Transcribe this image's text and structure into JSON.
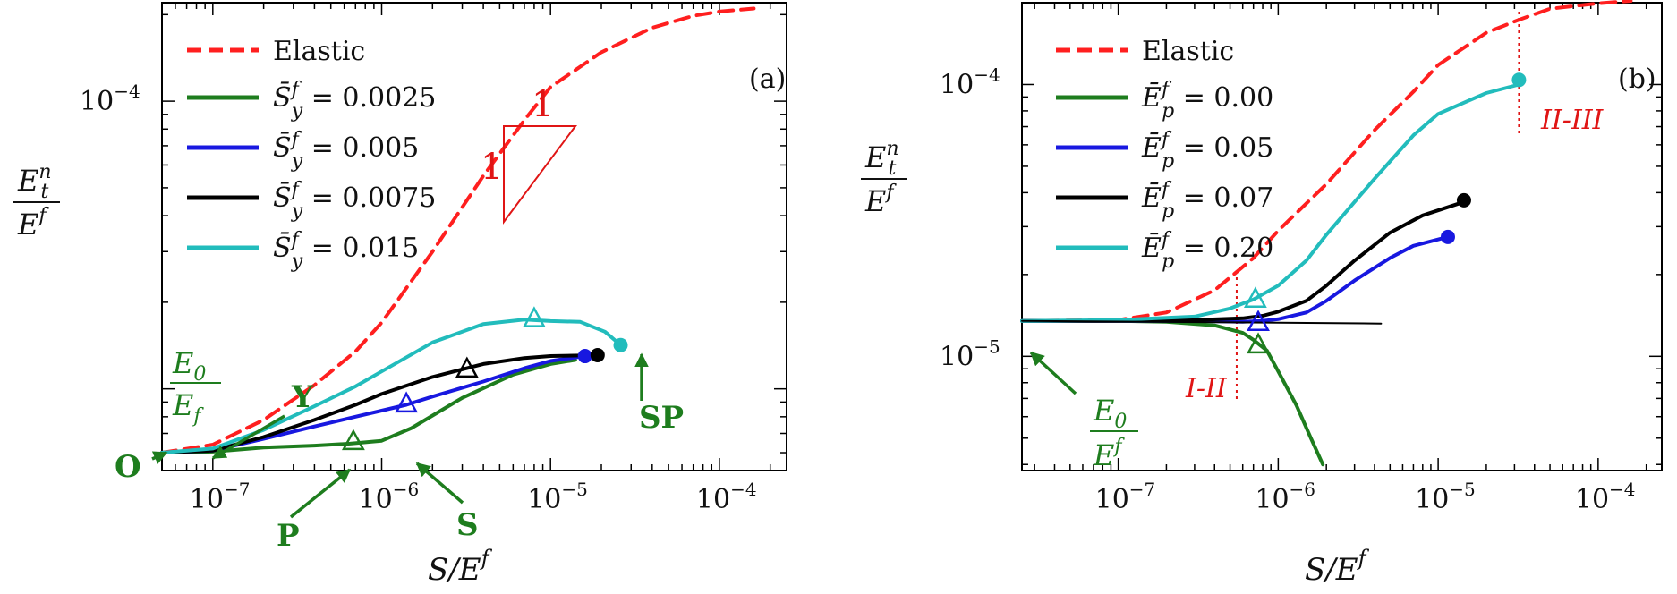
{
  "colors": {
    "elastic": "#ff1f1f",
    "green": "#1e7d1e",
    "blue": "#1818e0",
    "black": "#000000",
    "cyan": "#22bcbc",
    "annot_green": "#1e7d1e",
    "annot_red": "#e01515"
  },
  "labels": {
    "ylabel_num": "E_t^n",
    "ylabel_den": "E^f",
    "xlabel": "S/E^f",
    "e0_num_a": "E_0",
    "e0_den_a": "E_f",
    "e0_num_b": "E_0",
    "e0_den_b": "E^f",
    "O": "O",
    "Y": "Y",
    "P": "P",
    "S": "S",
    "SP": "SP",
    "slope_one_top": "1",
    "slope_one_left": "1",
    "I_II": "I-II",
    "II_III": "II-III"
  },
  "chart_data": [
    {
      "type": "line",
      "panel_label": "(a)",
      "x_scale": "log",
      "y_scale": "log",
      "xlim": [
        5e-08,
        0.00025
      ],
      "ylim": [
        5.2e-06,
        0.00022
      ],
      "xlabel": "S/E^f",
      "ylabel": "E_t^n / E^f",
      "xticks": [
        {
          "v": 1e-07,
          "label": "10^-7"
        },
        {
          "v": 1e-06,
          "label": "10^-6"
        },
        {
          "v": 1e-05,
          "label": "10^-5"
        },
        {
          "v": 0.0001,
          "label": "10^-4"
        }
      ],
      "yticks": [
        {
          "v": 0.0001,
          "label": "10^-4"
        }
      ],
      "legend_position": "top-left",
      "series": [
        {
          "name": "Elastic",
          "color": "#ff1f1f",
          "dash": true,
          "x": [
            5e-08,
            1e-07,
            2e-07,
            4e-07,
            7e-07,
            1e-06,
            2e-06,
            4e-06,
            7e-06,
            1e-05,
            2e-05,
            4e-05,
            7e-05,
            0.0001,
            0.00016
          ],
          "y": [
            6e-06,
            6.4e-06,
            7.8e-06,
            1.03e-05,
            1.35e-05,
            1.7e-05,
            3e-05,
            5.5e-05,
            8.6e-05,
            0.000112,
            0.000148,
            0.00018,
            0.000198,
            0.000205,
            0.00021
          ]
        },
        {
          "name": "S_y^f = 0.0025",
          "name_prefix": "S_y^f",
          "name_value": "0.0025",
          "color": "#1e7d1e",
          "dash": false,
          "x": [
            5e-08,
            1e-07,
            2e-07,
            4e-07,
            6.5e-07,
            1e-06,
            1.5e-06,
            3e-06,
            6e-06,
            1e-05,
            1.4e-05
          ],
          "y": [
            6e-06,
            6.05e-06,
            6.25e-06,
            6.35e-06,
            6.45e-06,
            6.6e-06,
            7.3e-06,
            9.3e-06,
            1.12e-05,
            1.22e-05,
            1.26e-05
          ],
          "end_marker": false
        },
        {
          "name": "S_y^f = 0.005",
          "name_prefix": "S_y^f",
          "name_value": "0.005",
          "color": "#1818e0",
          "dash": false,
          "x": [
            5e-08,
            1e-07,
            2e-07,
            4e-07,
            7e-07,
            1e-06,
            1.4e-06,
            2e-06,
            4e-06,
            7e-06,
            1e-05,
            1.6e-05
          ],
          "y": [
            6e-06,
            6.1e-06,
            6.7e-06,
            7.4e-06,
            8e-06,
            8.4e-06,
            8.8e-06,
            9.4e-06,
            1.06e-05,
            1.18e-05,
            1.25e-05,
            1.3e-05
          ],
          "end_marker": true
        },
        {
          "name": "S_y^f = 0.0075",
          "name_prefix": "S_y^f",
          "name_value": "0.0075",
          "color": "#000000",
          "dash": false,
          "x": [
            5e-08,
            1e-07,
            2e-07,
            4e-07,
            7e-07,
            1e-06,
            2e-06,
            4e-06,
            7e-06,
            1e-05,
            1.9e-05
          ],
          "y": [
            6e-06,
            6.1e-06,
            6.8e-06,
            7.8e-06,
            8.8e-06,
            9.6e-06,
            1.1e-05,
            1.22e-05,
            1.28e-05,
            1.3e-05,
            1.31e-05
          ],
          "end_marker": true
        },
        {
          "name": "S_y^f = 0.015",
          "name_prefix": "S_y^f",
          "name_value": "0.015",
          "color": "#22bcbc",
          "dash": false,
          "x": [
            5e-08,
            1e-07,
            2e-07,
            4e-07,
            7e-07,
            1e-06,
            2e-06,
            4e-06,
            7e-06,
            1e-05,
            1.5e-05,
            2.1e-05,
            2.6e-05
          ],
          "y": [
            6e-06,
            6.2e-06,
            7.2e-06,
            8.7e-06,
            1.02e-05,
            1.15e-05,
            1.45e-05,
            1.68e-05,
            1.74e-05,
            1.72e-05,
            1.71e-05,
            1.58e-05,
            1.42e-05
          ],
          "end_marker": true
        }
      ],
      "markers": [
        {
          "series": "S_y^f = 0.0025",
          "x": 6.8e-07,
          "y": 6.55e-06
        },
        {
          "series": "S_y^f = 0.005",
          "x": 1.4e-06,
          "y": 8.85e-06
        },
        {
          "series": "S_y^f = 0.0075",
          "x": 3.2e-06,
          "y": 1.17e-05
        },
        {
          "series": "S_y^f = 0.015",
          "x": 8e-06,
          "y": 1.75e-05
        }
      ]
    },
    {
      "type": "line",
      "panel_label": "(b)",
      "x_scale": "log",
      "y_scale": "log",
      "xlim": [
        2.5e-08,
        0.00025
      ],
      "ylim": [
        3.8e-06,
        0.0002
      ],
      "xlabel": "S/E^f",
      "ylabel": "E_t^n / E^f",
      "xticks": [
        {
          "v": 1e-07,
          "label": "10^-7"
        },
        {
          "v": 1e-06,
          "label": "10^-6"
        },
        {
          "v": 1e-05,
          "label": "10^-5"
        },
        {
          "v": 0.0001,
          "label": "10^-4"
        }
      ],
      "yticks": [
        {
          "v": 1e-05,
          "label": "10^-5"
        },
        {
          "v": 0.0001,
          "label": "10^-4"
        }
      ],
      "legend_position": "top-left",
      "series": [
        {
          "name": "Elastic",
          "color": "#ff1f1f",
          "dash": true,
          "x": [
            2.5e-08,
            1e-07,
            2e-07,
            4e-07,
            7e-07,
            1e-06,
            2e-06,
            4e-06,
            7e-06,
            1e-05,
            2e-05,
            3.2e-05,
            5e-05,
            0.0001,
            0.00016
          ],
          "y": [
            1.35e-05,
            1.36e-05,
            1.45e-05,
            1.75e-05,
            2.3e-05,
            2.9e-05,
            4.3e-05,
            6.8e-05,
            9.4e-05,
            0.000118,
            0.000155,
            0.000173,
            0.00019,
            0.000199,
            0.000203
          ]
        },
        {
          "name": "E_p^f = 0.00",
          "name_prefix": "E_p^f",
          "name_value": "0.00",
          "color": "#1e7d1e",
          "dash": false,
          "x": [
            2.5e-08,
            1e-07,
            2e-07,
            4e-07,
            6e-07,
            7e-07,
            8.5e-07,
            1e-06,
            1.3e-06,
            1.6e-06,
            1.9e-06
          ],
          "y": [
            1.35e-05,
            1.35e-05,
            1.34e-05,
            1.3e-05,
            1.22e-05,
            1.15e-05,
            1.05e-05,
            8.8e-06,
            6.6e-06,
            5e-06,
            4e-06
          ],
          "end_marker": false
        },
        {
          "name": "E_p^f = 0.05",
          "name_prefix": "E_p^f",
          "name_value": "0.05",
          "color": "#1818e0",
          "dash": false,
          "x": [
            2.5e-08,
            1e-07,
            3e-07,
            6e-07,
            8e-07,
            1e-06,
            1.5e-06,
            2e-06,
            3e-06,
            5e-06,
            7e-06,
            1.15e-05
          ],
          "y": [
            1.35e-05,
            1.35e-05,
            1.35e-05,
            1.34e-05,
            1.35e-05,
            1.37e-05,
            1.45e-05,
            1.6e-05,
            1.9e-05,
            2.3e-05,
            2.55e-05,
            2.75e-05
          ],
          "end_marker": true
        },
        {
          "name": "E_p^f = 0.07",
          "name_prefix": "E_p^f",
          "name_value": "0.07",
          "color": "#000000",
          "dash": false,
          "x": [
            2.5e-08,
            1e-07,
            3e-07,
            6e-07,
            8e-07,
            1e-06,
            1.5e-06,
            2e-06,
            3e-06,
            5e-06,
            8e-06,
            1.45e-05
          ],
          "y": [
            1.35e-05,
            1.35e-05,
            1.36e-05,
            1.38e-05,
            1.41e-05,
            1.46e-05,
            1.6e-05,
            1.82e-05,
            2.25e-05,
            2.85e-05,
            3.3e-05,
            3.7e-05
          ],
          "end_marker": true
        },
        {
          "name": "E_p^f = 0.20",
          "name_prefix": "E_p^f",
          "name_value": "0.20",
          "color": "#22bcbc",
          "dash": false,
          "x": [
            2.5e-08,
            1e-07,
            3e-07,
            5e-07,
            7e-07,
            1e-06,
            1.5e-06,
            2e-06,
            4e-06,
            7e-06,
            1e-05,
            2e-05,
            3.2e-05
          ],
          "y": [
            1.35e-05,
            1.36e-05,
            1.4e-05,
            1.5e-05,
            1.62e-05,
            1.82e-05,
            2.25e-05,
            2.8e-05,
            4.5e-05,
            6.5e-05,
            7.8e-05,
            9.3e-05,
            0.0001
          ],
          "end_marker": true
        },
        {
          "name": "",
          "color": "#000000",
          "dash": false,
          "thin": true,
          "x": [
            2.5e-08,
            1e-06,
            4.4e-06
          ],
          "y": [
            1.35e-05,
            1.33e-05,
            1.32e-05
          ],
          "end_marker": false
        }
      ],
      "end_points": [
        {
          "series": "E_p^f = 0.05",
          "x": 1.15e-05,
          "y": 2.75e-05
        },
        {
          "series": "E_p^f = 0.07",
          "x": 1.45e-05,
          "y": 3.75e-05
        },
        {
          "series": "E_p^f = 0.20",
          "x": 3.2e-05,
          "y": 0.000104
        }
      ],
      "markers": [
        {
          "series": "E_p^f = 0.00",
          "x": 7.5e-07,
          "y": 1.1e-05
        },
        {
          "series": "E_p^f = 0.05",
          "x": 7.5e-07,
          "y": 1.33e-05
        },
        {
          "series": "E_p^f = 0.20",
          "x": 7.2e-07,
          "y": 1.62e-05
        }
      ],
      "regime_lines": [
        {
          "label": "I-II",
          "x": 5.5e-07
        },
        {
          "label": "II-III",
          "x": 3.2e-05
        }
      ]
    }
  ]
}
